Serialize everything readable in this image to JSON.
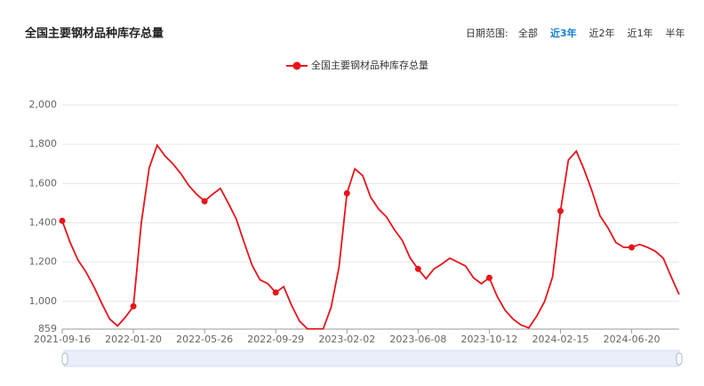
{
  "chart_data": {
    "type": "line",
    "title": "全国主要钢材品种库存总量",
    "x": [
      "2021-09-16",
      "2021-09-30",
      "2021-10-14",
      "2021-10-28",
      "2021-11-11",
      "2021-11-25",
      "2021-12-09",
      "2021-12-23",
      "2022-01-06",
      "2022-01-20",
      "2022-02-03",
      "2022-02-17",
      "2022-03-03",
      "2022-03-17",
      "2022-03-31",
      "2022-04-14",
      "2022-04-28",
      "2022-05-12",
      "2022-05-26",
      "2022-06-09",
      "2022-06-23",
      "2022-07-07",
      "2022-07-21",
      "2022-08-04",
      "2022-08-18",
      "2022-09-01",
      "2022-09-15",
      "2022-09-29",
      "2022-10-13",
      "2022-10-27",
      "2022-11-10",
      "2022-11-24",
      "2022-12-08",
      "2022-12-22",
      "2023-01-05",
      "2023-01-19",
      "2023-02-02",
      "2023-02-16",
      "2023-03-02",
      "2023-03-16",
      "2023-03-30",
      "2023-04-13",
      "2023-04-27",
      "2023-05-11",
      "2023-05-25",
      "2023-06-08",
      "2023-06-22",
      "2023-07-06",
      "2023-07-20",
      "2023-08-03",
      "2023-08-17",
      "2023-08-31",
      "2023-09-14",
      "2023-09-28",
      "2023-10-12",
      "2023-10-26",
      "2023-11-09",
      "2023-11-23",
      "2023-12-07",
      "2023-12-21",
      "2024-01-04",
      "2024-01-18",
      "2024-02-01",
      "2024-02-15",
      "2024-02-29",
      "2024-03-14",
      "2024-03-28",
      "2024-04-11",
      "2024-04-25",
      "2024-05-09",
      "2024-05-23",
      "2024-06-06",
      "2024-06-20",
      "2024-07-04",
      "2024-07-18",
      "2024-08-01",
      "2024-08-15",
      "2024-08-29",
      "2024-09-12"
    ],
    "series": [
      {
        "name": "全国主要钢材品种库存总量",
        "color": "#e8141b",
        "values": [
          1410,
          1300,
          1210,
          1150,
          1075,
          990,
          910,
          875,
          920,
          975,
          1400,
          1680,
          1795,
          1740,
          1700,
          1650,
          1590,
          1545,
          1510,
          1545,
          1575,
          1500,
          1420,
          1300,
          1185,
          1110,
          1090,
          1045,
          1075,
          980,
          900,
          860,
          860,
          860,
          970,
          1175,
          1550,
          1675,
          1640,
          1530,
          1470,
          1430,
          1365,
          1310,
          1220,
          1165,
          1115,
          1165,
          1190,
          1220,
          1200,
          1180,
          1120,
          1090,
          1120,
          1025,
          955,
          910,
          880,
          865,
          925,
          1000,
          1125,
          1460,
          1720,
          1765,
          1670,
          1560,
          1435,
          1375,
          1300,
          1275,
          1275,
          1290,
          1275,
          1255,
          1220,
          1125,
          1035
        ]
      }
    ],
    "xlim": [
      "2021-09-16",
      "2024-09-12"
    ],
    "xticks": [
      "2021-09-16",
      "2022-01-20",
      "2022-05-26",
      "2022-09-29",
      "2023-02-02",
      "2023-06-08",
      "2023-10-12",
      "2024-02-15",
      "2024-06-20"
    ],
    "ylim": [
      859,
      2000
    ],
    "yticks": [
      859,
      {
        "value": 1000,
        "label": "1,000"
      },
      {
        "value": 1200,
        "label": "1,200"
      },
      {
        "value": 1400,
        "label": "1,400"
      },
      {
        "value": 1600,
        "label": "1,600"
      },
      {
        "value": 1800,
        "label": "1,800"
      },
      {
        "value": 2000,
        "label": "2,000"
      }
    ],
    "grid": true,
    "legend": "top"
  },
  "controls": {
    "label": "日期范围:",
    "options": [
      "全部",
      "近3年",
      "近2年",
      "近1年",
      "半年"
    ],
    "active": 1
  }
}
